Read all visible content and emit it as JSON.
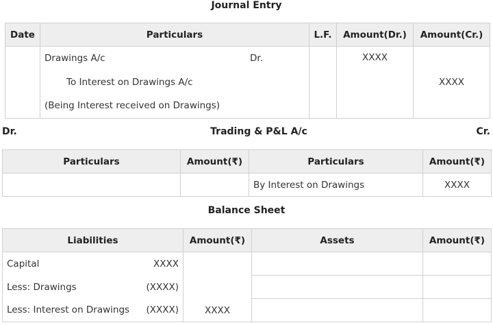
{
  "journal": {
    "title": "Journal Entry",
    "headers": [
      "Date",
      "Particulars",
      "L.F.",
      "Amount(Dr.)",
      "Amount(Cr.)"
    ],
    "debit_account": "Drawings A/c",
    "dr_label": "Dr.",
    "credit_account": "To Interest on Drawings A/c",
    "narration": "(Being Interest received on Drawings)",
    "amount_dr": "XXXX",
    "amount_cr": "XXXX"
  },
  "trading": {
    "dr": "Dr.",
    "title": "Trading & P&L A/c",
    "cr": "Cr.",
    "headers": [
      "Particulars",
      "Amount(₹)",
      "Particulars",
      "Amount(₹)"
    ],
    "credit_item": "By Interest on Drawings",
    "credit_amount": "XXXX"
  },
  "balance_sheet": {
    "title": "Balance Sheet",
    "headers": [
      "Liabilities",
      "Amount(₹)",
      "Assets",
      "Amount(₹)"
    ],
    "rows": [
      {
        "label": "Capital",
        "value": "XXXX"
      },
      {
        "label": "Less: Drawings",
        "value": "(XXXX)"
      },
      {
        "label": "Less: Interest on Drawings",
        "value": "(XXXX)"
      }
    ],
    "total": "XXXX"
  }
}
